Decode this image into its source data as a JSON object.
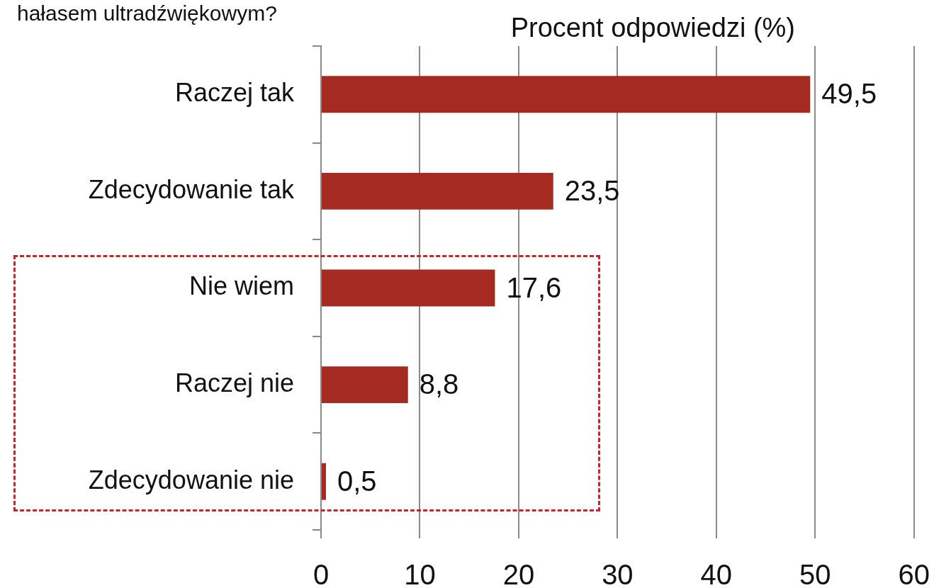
{
  "chart_data": {
    "type": "bar",
    "orientation": "horizontal",
    "title": "hałasem ultradźwiękowym?",
    "xlabel": "Procent odpowiedzi (%)",
    "categories": [
      "Raczej tak",
      "Zdecydowanie tak",
      "Nie wiem",
      "Raczej nie",
      "Zdecydowanie nie"
    ],
    "values": [
      49.5,
      23.5,
      17.6,
      8.8,
      0.5
    ],
    "value_labels": [
      "49,5",
      "23,5",
      "17,6",
      "8,8",
      "0,5"
    ],
    "color": "#a52a22",
    "xlim": [
      0,
      60
    ],
    "xticks": [
      0,
      10,
      20,
      30,
      40,
      50,
      60
    ],
    "grid": "x",
    "legend": false
  }
}
